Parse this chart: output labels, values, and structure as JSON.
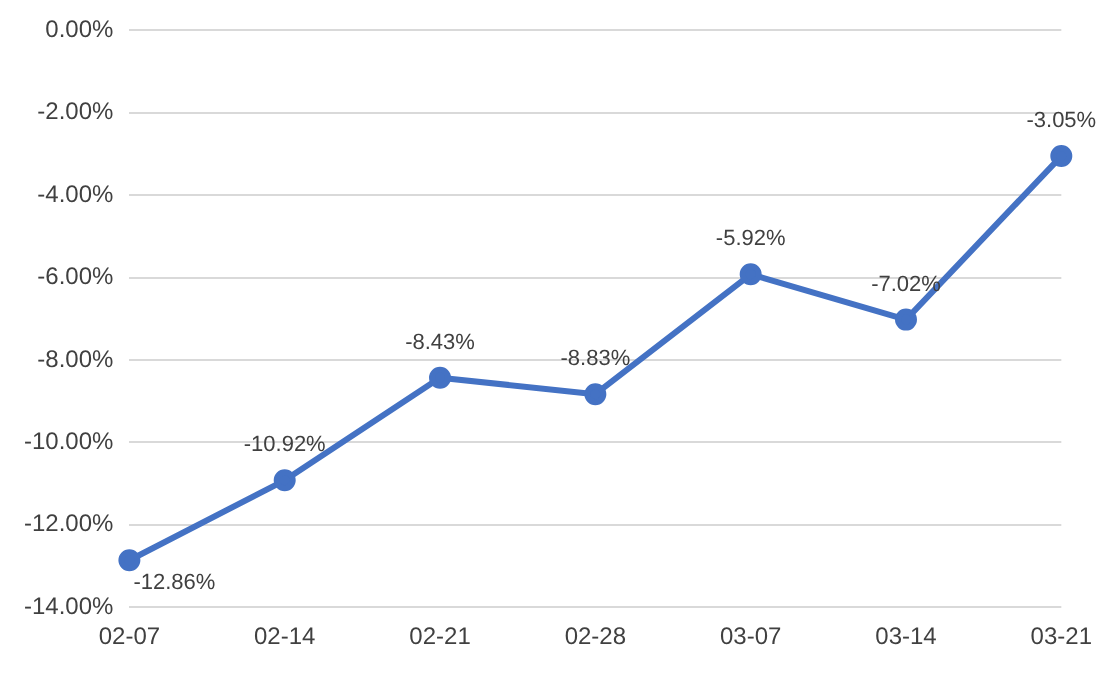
{
  "chart_data": {
    "type": "line",
    "categories": [
      "02-07",
      "02-14",
      "02-21",
      "02-28",
      "03-07",
      "03-14",
      "03-21"
    ],
    "series": [
      {
        "color": "#4472c4",
        "values": [
          -12.86,
          -10.92,
          -8.43,
          -8.83,
          -5.92,
          -7.02,
          -3.05
        ],
        "value_labels": [
          "-12.86%",
          "-10.92%",
          "-8.43%",
          "-8.83%",
          "-5.92%",
          "-7.02%",
          "-3.05%"
        ]
      }
    ],
    "ylim": [
      -14,
      0
    ],
    "yticks": [
      {
        "value": 0,
        "label": "0.00%"
      },
      {
        "value": -2,
        "label": "-2.00%"
      },
      {
        "value": -4,
        "label": "-4.00%"
      },
      {
        "value": -6,
        "label": "-6.00%"
      },
      {
        "value": -8,
        "label": "-8.00%"
      },
      {
        "value": -10,
        "label": "-10.00%"
      },
      {
        "value": -12,
        "label": "-12.00%"
      },
      {
        "value": -14,
        "label": "-14.00%"
      }
    ],
    "grid": "y",
    "legend": false,
    "marker": "circle",
    "line_style": "solid"
  }
}
